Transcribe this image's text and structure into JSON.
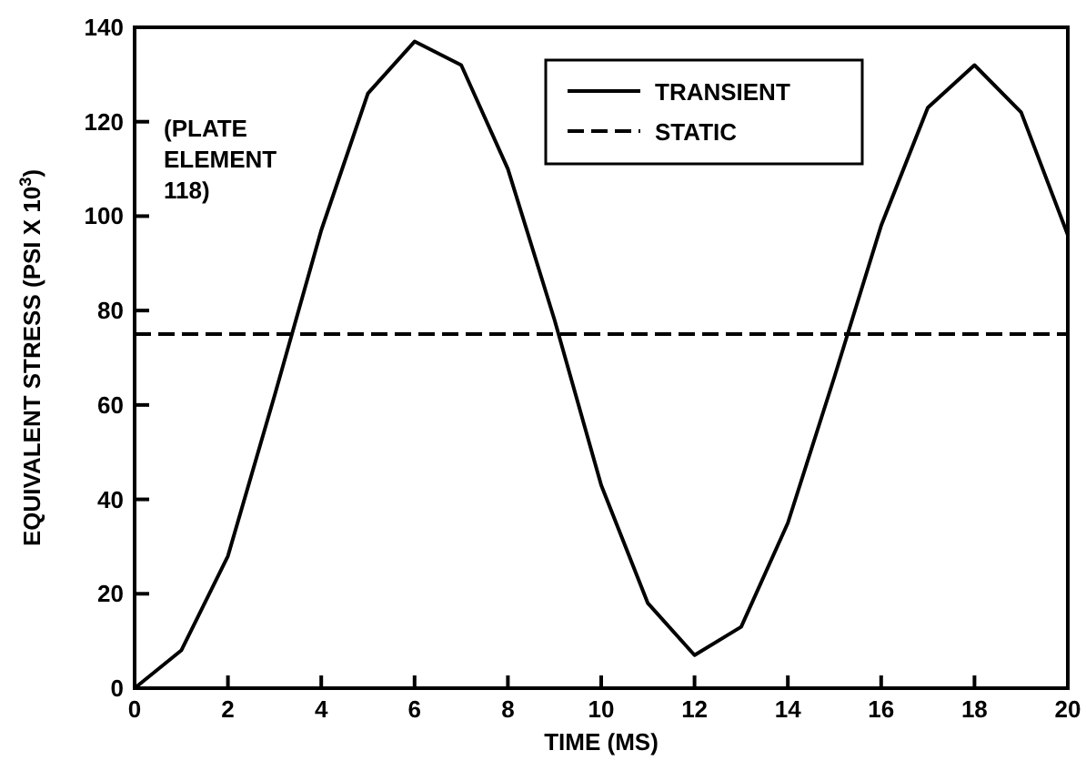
{
  "chart_data": {
    "type": "line",
    "xlabel": "TIME (MS)",
    "ylabel": "EQUIVALENT STRESS (PSI X 10$^{3}$)",
    "x": [
      0,
      1,
      2,
      3,
      4,
      5,
      6,
      7,
      8,
      9,
      10,
      11,
      12,
      13,
      14,
      15,
      16,
      17,
      18,
      19,
      20
    ],
    "series": [
      {
        "name": "TRANSIENT",
        "color": "#000000",
        "line_style": "solid",
        "values": [
          0,
          8,
          28,
          62,
          97,
          126,
          137,
          132,
          110,
          78,
          43,
          18,
          7,
          13,
          35,
          66,
          98,
          123,
          132,
          122,
          96
        ]
      },
      {
        "name": "STATIC",
        "color": "#000000",
        "line_style": "dashed",
        "x": [
          0,
          20
        ],
        "values": [
          75,
          75
        ]
      }
    ],
    "xlim": [
      0,
      20
    ],
    "xticks": [
      0,
      2,
      4,
      6,
      8,
      10,
      12,
      14,
      16,
      18,
      20
    ],
    "ylim": [
      0,
      140
    ],
    "yticks": [
      0,
      20,
      40,
      60,
      80,
      100,
      120,
      140
    ],
    "grid": false,
    "legend": "top right",
    "marker": "none",
    "annotations": [
      "(PLATE\nELEMENT\n118)"
    ]
  }
}
